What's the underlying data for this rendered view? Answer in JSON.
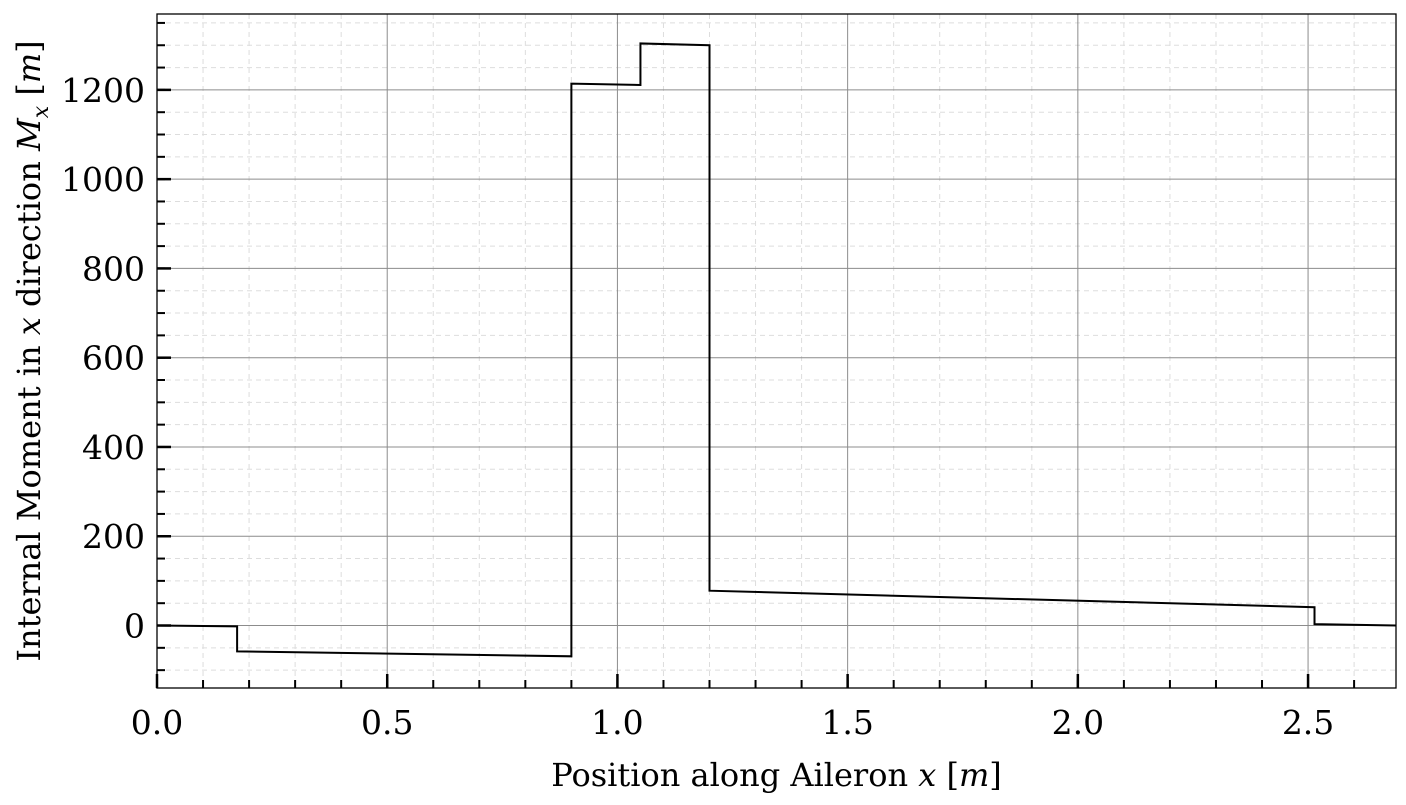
{
  "chart_data": {
    "type": "line",
    "title": "",
    "xlabel": {
      "prefix": "Position along Aileron ",
      "var": "x",
      "unit_open": " [",
      "unit": "m",
      "unit_close": "]"
    },
    "ylabel": {
      "prefix": "Internal Moment in ",
      "var": "x",
      "mid": " direction ",
      "sym": "M",
      "sub": "x",
      "unit_open": " [",
      "unit": "m",
      "unit_close": "]"
    },
    "xlim": [
      0.0,
      2.691
    ],
    "ylim": [
      -140,
      1370
    ],
    "xticks": [
      0.0,
      0.5,
      1.0,
      1.5,
      2.0,
      2.5
    ],
    "xtick_labels": [
      "0.0",
      "0.5",
      "1.0",
      "1.5",
      "2.0",
      "2.5"
    ],
    "yticks": [
      0,
      200,
      400,
      600,
      800,
      1000,
      1200
    ],
    "ytick_labels": [
      "0",
      "200",
      "400",
      "600",
      "800",
      "1000",
      "1200"
    ],
    "x_minor_step": 0.1,
    "y_minor_step": 50,
    "grid": true,
    "line_color": "#000000",
    "major_grid_color": "#8c8c8c",
    "minor_grid_color": "#dddddd",
    "series": [
      {
        "points": [
          [
            0.0,
            0
          ],
          [
            0.174,
            -2
          ],
          [
            0.174,
            -58
          ],
          [
            0.9,
            -69
          ],
          [
            0.9,
            1214
          ],
          [
            1.05,
            1211
          ],
          [
            1.05,
            1304
          ],
          [
            1.2,
            1300
          ],
          [
            1.2,
            78
          ],
          [
            2.514,
            41
          ],
          [
            2.514,
            3
          ],
          [
            2.691,
            0
          ]
        ]
      }
    ]
  }
}
